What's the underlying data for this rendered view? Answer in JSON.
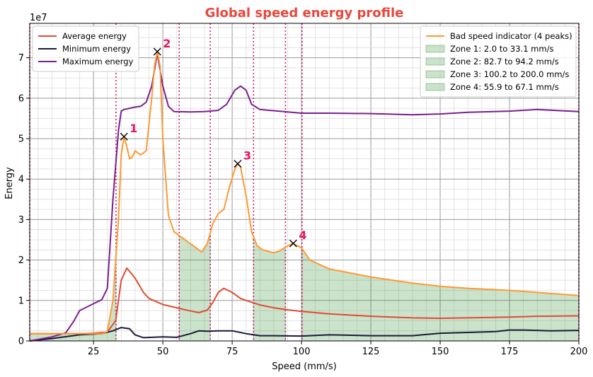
{
  "chart_data": {
    "type": "line",
    "title": "Global speed energy profile",
    "xlabel": "Speed (mm/s)",
    "ylabel": "Energy",
    "y_multiplier_label": "1e7",
    "xlim": [
      2,
      200
    ],
    "ylim": [
      0,
      78500000
    ],
    "x_ticks": [
      25,
      50,
      75,
      100,
      125,
      150,
      175,
      200
    ],
    "y_ticks": [
      0,
      10000000,
      20000000,
      30000000,
      40000000,
      50000000,
      60000000,
      70000000
    ],
    "y_tick_labels": [
      "0",
      "1",
      "2",
      "3",
      "4",
      "5",
      "6",
      "7"
    ],
    "grid": true,
    "colors": {
      "title": "#e8483c",
      "average": "#e24a33",
      "minimum": "#1a1a3a",
      "maximum": "#7b1f8e",
      "bad": "#ff9933",
      "zone_fill": "#2e8b2e",
      "zone_line": "#d6196e",
      "peak_label": "#e8175d"
    },
    "series": [
      {
        "name": "Average energy",
        "key": "average",
        "x": [
          2,
          10,
          20,
          25,
          30,
          33,
          35,
          37,
          40,
          43,
          45,
          50,
          55,
          60,
          63,
          66,
          68,
          70,
          72,
          75,
          78,
          80,
          85,
          90,
          95,
          100,
          110,
          125,
          140,
          150,
          160,
          175,
          185,
          200
        ],
        "y": [
          1800000,
          1800000,
          1800000,
          1900000,
          2200000,
          5000000,
          15000000,
          18000000,
          15500000,
          12000000,
          10500000,
          9000000,
          8200000,
          7400000,
          7000000,
          7600000,
          9500000,
          12000000,
          13000000,
          12000000,
          10500000,
          10000000,
          8900000,
          8200000,
          7700000,
          7300000,
          6700000,
          6100000,
          5700000,
          5600000,
          5700000,
          5900000,
          6100000,
          6200000
        ]
      },
      {
        "name": "Minimum energy",
        "key": "minimum",
        "x": [
          2,
          10,
          20,
          28,
          32,
          35,
          38,
          40,
          43,
          50,
          55,
          60,
          63,
          66,
          70,
          75,
          80,
          85,
          90,
          100,
          110,
          125,
          140,
          150,
          160,
          170,
          175,
          180,
          190,
          200
        ],
        "y": [
          0,
          600000,
          1500000,
          1800000,
          2500000,
          3300000,
          3000000,
          1500000,
          800000,
          1000000,
          900000,
          1800000,
          2500000,
          2400000,
          2500000,
          2500000,
          1800000,
          1300000,
          1300000,
          1200000,
          1500000,
          1300000,
          1300000,
          1900000,
          2100000,
          2300000,
          2700000,
          2700000,
          2500000,
          2600000
        ]
      },
      {
        "name": "Maximum energy",
        "key": "maximum",
        "x": [
          2,
          10,
          15,
          18,
          20,
          25,
          28,
          30,
          32,
          34,
          35,
          36,
          38,
          40,
          42,
          44,
          46,
          48,
          50,
          52,
          54,
          60,
          65,
          70,
          73,
          76,
          78,
          80,
          82,
          85,
          95,
          100,
          110,
          125,
          140,
          150,
          160,
          175,
          185,
          200
        ],
        "y": [
          0,
          1000000,
          2000000,
          5000000,
          7500000,
          9200000,
          10200000,
          13000000,
          35000000,
          52000000,
          56800000,
          57200000,
          57500000,
          57800000,
          58000000,
          59000000,
          63000000,
          71000000,
          63000000,
          58000000,
          56700000,
          56600000,
          56700000,
          57000000,
          58500000,
          62000000,
          63000000,
          62000000,
          58500000,
          57200000,
          56600000,
          56300000,
          56300000,
          56200000,
          55900000,
          56100000,
          56500000,
          56800000,
          57200000,
          56700000
        ]
      },
      {
        "name": "Bad speed indicator (4 peaks)",
        "key": "bad",
        "x": [
          2,
          20,
          28,
          30,
          32,
          34,
          35,
          36,
          37,
          38,
          39,
          40,
          42,
          44,
          46,
          47,
          48,
          49,
          50,
          52,
          54,
          56,
          60,
          64,
          66,
          68,
          70,
          72,
          74,
          76,
          77,
          78,
          80,
          82,
          84,
          86,
          90,
          92,
          95,
          97,
          100,
          103,
          110,
          125,
          140,
          150,
          160,
          175,
          185,
          200
        ],
        "y": [
          1800000,
          1800000,
          1800000,
          2300000,
          10000000,
          30000000,
          46000000,
          50500000,
          48000000,
          45000000,
          45500000,
          47000000,
          46000000,
          47000000,
          60000000,
          68000000,
          71500000,
          68000000,
          50000000,
          31000000,
          27000000,
          26000000,
          24000000,
          22000000,
          24000000,
          29000000,
          31500000,
          32500000,
          38000000,
          42500000,
          43800000,
          43000000,
          36000000,
          27000000,
          23500000,
          22500000,
          21800000,
          22200000,
          23500000,
          24100000,
          23000000,
          20000000,
          17800000,
          15800000,
          14300000,
          13500000,
          13000000,
          12500000,
          12000000,
          11200000
        ]
      }
    ],
    "zones": [
      {
        "name": "Zone 1: 2.0 to 33.1 mm/s",
        "start": 2.0,
        "end": 33.1
      },
      {
        "name": "Zone 2: 82.7 to 94.2 mm/s",
        "start": 82.7,
        "end": 94.2
      },
      {
        "name": "Zone 3: 100.2 to 200.0 mm/s",
        "start": 100.2,
        "end": 200.0
      },
      {
        "name": "Zone 4: 55.9 to 67.1 mm/s",
        "start": 55.9,
        "end": 67.1
      }
    ],
    "peaks": [
      {
        "label": "1",
        "x": 36,
        "y": 50500000
      },
      {
        "label": "2",
        "x": 48,
        "y": 71500000
      },
      {
        "label": "3",
        "x": 77,
        "y": 43800000
      },
      {
        "label": "4",
        "x": 97,
        "y": 24100000
      }
    ],
    "legend_left_position": "top-left",
    "legend_right_position": "top-right"
  }
}
